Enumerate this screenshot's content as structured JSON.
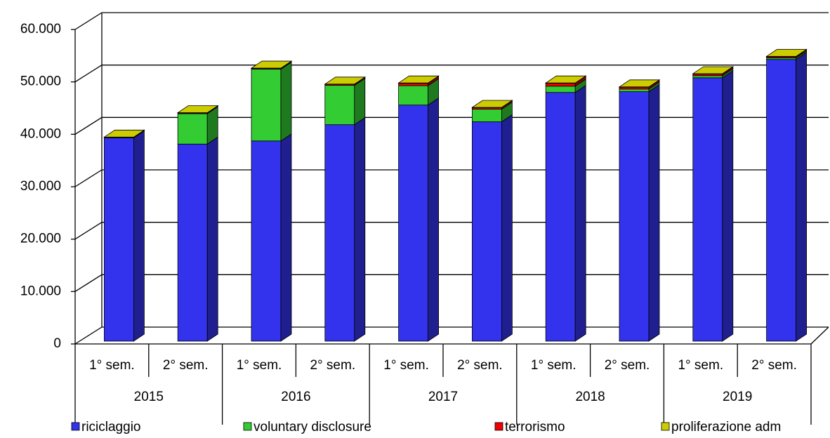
{
  "chart_data": {
    "type": "bar",
    "stacked": true,
    "three_d": true,
    "categories": [
      "1° sem.",
      "2° sem.",
      "1° sem.",
      "2° sem.",
      "1° sem.",
      "2° sem.",
      "1° sem.",
      "2° sem.",
      "1° sem.",
      "2° sem."
    ],
    "groups": [
      "2015",
      "2016",
      "2017",
      "2018",
      "2019"
    ],
    "series": [
      {
        "name": "riciclaggio",
        "color": "#3333ee",
        "values": [
          38800,
          37600,
          38200,
          41300,
          45050,
          41850,
          47450,
          47600,
          50250,
          53750
        ]
      },
      {
        "name": "voluntary disclosure",
        "color": "#33cc33",
        "values": [
          0,
          5800,
          13700,
          7500,
          3700,
          2400,
          1200,
          500,
          400,
          300
        ]
      },
      {
        "name": "terrorismo",
        "color": "#ee0000",
        "values": [
          100,
          150,
          150,
          200,
          450,
          300,
          550,
          350,
          300,
          200
        ]
      },
      {
        "name": "proliferazione adm",
        "color": "#cccc00",
        "values": [
          30,
          40,
          40,
          40,
          60,
          50,
          60,
          60,
          80,
          80
        ]
      }
    ],
    "ylim": [
      0,
      60000
    ],
    "yticks": [
      0,
      {
        "value": 10000,
        "label": "10.000"
      },
      {
        "value": 20000,
        "label": "20.000"
      },
      {
        "value": 30000,
        "label": "30.000"
      },
      {
        "value": 40000,
        "label": "40.000"
      },
      {
        "value": 50000,
        "label": "50.000"
      },
      {
        "value": 60000,
        "label": "60.000"
      }
    ],
    "grid": true,
    "legend": "bottom"
  }
}
